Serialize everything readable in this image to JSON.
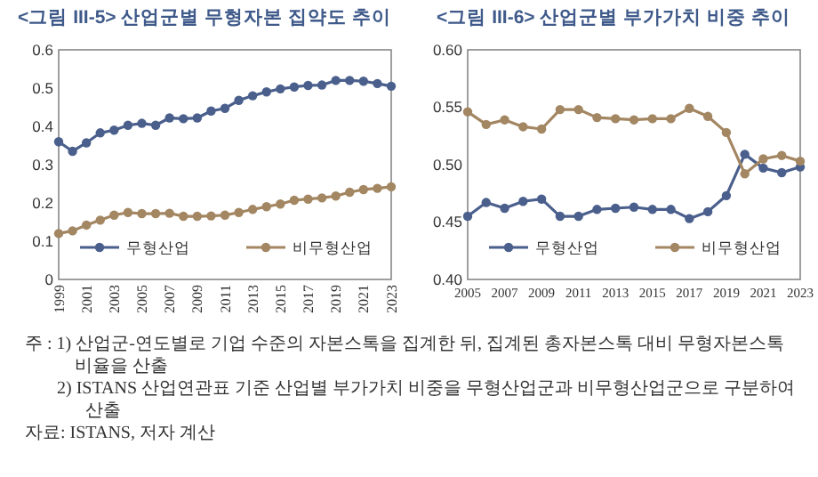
{
  "chart_data": [
    {
      "type": "line",
      "title": "<그림 III-5> 산업군별 무형자본 집약도 추이",
      "categories": [
        "1999",
        null,
        "2001",
        null,
        "2003",
        null,
        "2005",
        null,
        "2007",
        null,
        "2009",
        null,
        "2011",
        null,
        "2013",
        null,
        "2015",
        null,
        "2017",
        null,
        "2019",
        null,
        "2021",
        null,
        "2023"
      ],
      "series": [
        {
          "name": "무형산업",
          "color": "#4a5f8c",
          "values": [
            0.36,
            0.335,
            0.357,
            0.383,
            0.39,
            0.403,
            0.408,
            0.403,
            0.422,
            0.42,
            0.422,
            0.44,
            0.447,
            0.468,
            0.48,
            0.49,
            0.498,
            0.503,
            0.507,
            0.508,
            0.52,
            0.52,
            0.518,
            0.512,
            0.505
          ]
        },
        {
          "name": "비무형산업",
          "color": "#a38662",
          "values": [
            0.12,
            0.127,
            0.142,
            0.155,
            0.168,
            0.175,
            0.172,
            0.172,
            0.173,
            0.165,
            0.165,
            0.166,
            0.168,
            0.175,
            0.183,
            0.19,
            0.197,
            0.207,
            0.21,
            0.213,
            0.218,
            0.228,
            0.235,
            0.238,
            0.242
          ]
        }
      ],
      "ylim": [
        0,
        0.6
      ],
      "yticks": [
        0,
        0.1,
        0.2,
        0.3,
        0.4,
        0.5,
        0.6
      ],
      "marker": "circle",
      "legend": "bottom",
      "annotations": [
        "주 : 1) 산업군-연도별로 기업 수준의 자본스톡을 집계한 뒤, 집계된 총자본스톡 대비 무형자본스톡 비율을 산출",
        "2) ISTANS 산업연관표 기준 산업별 부가가치 비중을 무형산업군과 비무형산업군으로 구분하여 산출",
        "자료: ISTANS, 저자 계산"
      ]
    },
    {
      "type": "line",
      "title": "<그림 III-6> 산업군별 부가가치 비중 추이",
      "categories": [
        "2005",
        null,
        "2007",
        null,
        "2009",
        null,
        "2011",
        null,
        "2013",
        null,
        "2015",
        null,
        "2017",
        null,
        "2019",
        null,
        "2021",
        null,
        "2023"
      ],
      "series": [
        {
          "name": "무형산업",
          "color": "#4a5f8c",
          "values": [
            0.455,
            0.467,
            0.462,
            0.468,
            0.47,
            0.455,
            0.455,
            0.461,
            0.462,
            0.463,
            0.461,
            0.461,
            0.453,
            0.459,
            0.473,
            0.509,
            0.497,
            0.493,
            0.498
          ]
        },
        {
          "name": "비무형산업",
          "color": "#a38662",
          "values": [
            0.546,
            0.535,
            0.539,
            0.533,
            0.531,
            0.548,
            0.548,
            0.541,
            0.54,
            0.539,
            0.54,
            0.54,
            0.549,
            0.542,
            0.528,
            0.492,
            0.505,
            0.508,
            0.503
          ]
        }
      ],
      "ylim": [
        0.4,
        0.6
      ],
      "yticks": [
        {
          "value": 0.4,
          "label": "0.40"
        },
        {
          "value": 0.45,
          "label": "0.45"
        },
        {
          "value": 0.5,
          "label": "0.50"
        },
        {
          "value": 0.55,
          "label": "0.55"
        },
        {
          "value": 0.6,
          "label": "0.60"
        }
      ],
      "marker": "circle",
      "legend": "bottom"
    }
  ]
}
